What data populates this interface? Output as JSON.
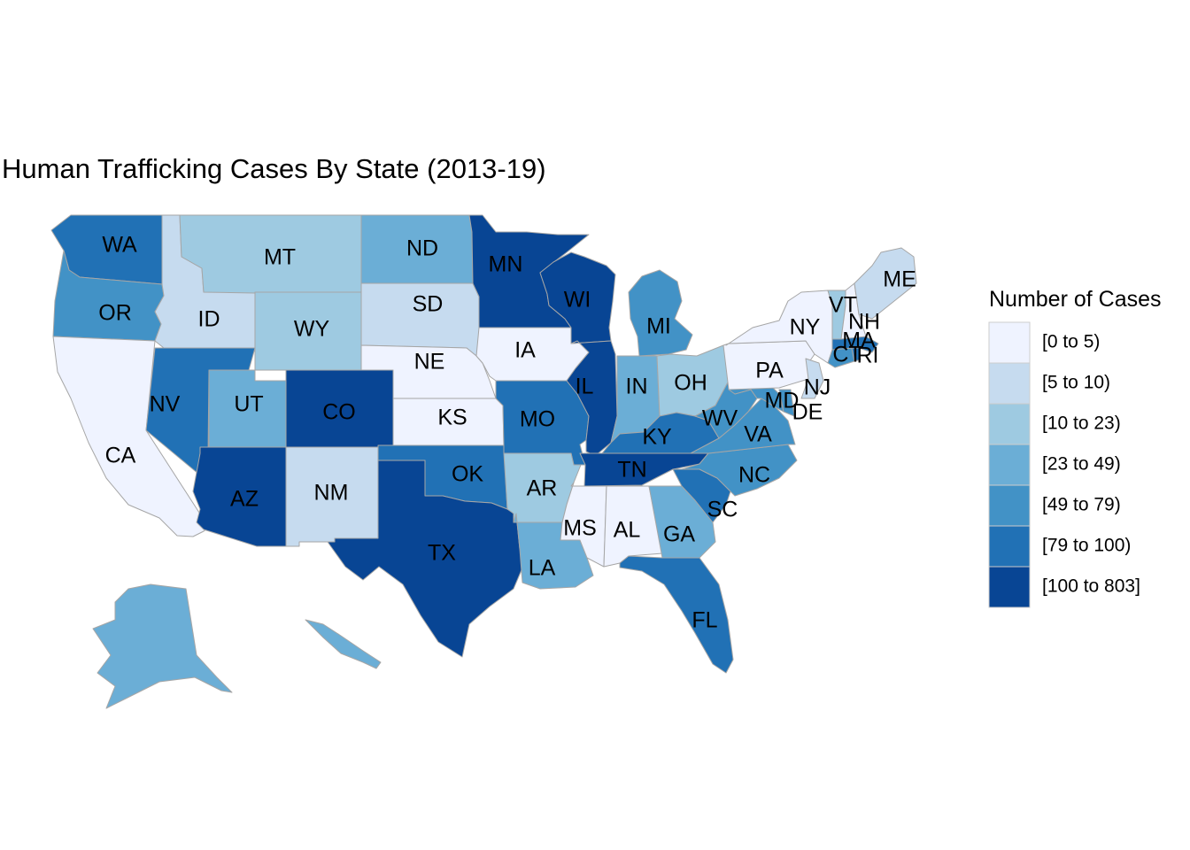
{
  "chart_data": {
    "type": "choropleth",
    "title": "Human Trafficking Cases By State (2013-19)",
    "legend_title": "Number of Cases",
    "legend_position": "right",
    "bins": [
      {
        "label": "[0 to 5)",
        "color": "#eff3ff"
      },
      {
        "label": "[5 to 10)",
        "color": "#c6dbef"
      },
      {
        "label": "[10 to 23)",
        "color": "#9ecae1"
      },
      {
        "label": "[23 to 49)",
        "color": "#6baed6"
      },
      {
        "label": "[49 to 79)",
        "color": "#4292c6"
      },
      {
        "label": "[79 to 100)",
        "color": "#2171b5"
      },
      {
        "label": "[100 to 803]",
        "color": "#084594"
      }
    ],
    "states": [
      {
        "abbr": "WA",
        "bin": 5
      },
      {
        "abbr": "OR",
        "bin": 4
      },
      {
        "abbr": "CA",
        "bin": 0
      },
      {
        "abbr": "ID",
        "bin": 1
      },
      {
        "abbr": "NV",
        "bin": 5
      },
      {
        "abbr": "MT",
        "bin": 2
      },
      {
        "abbr": "WY",
        "bin": 2
      },
      {
        "abbr": "UT",
        "bin": 3
      },
      {
        "abbr": "AZ",
        "bin": 6
      },
      {
        "abbr": "CO",
        "bin": 6
      },
      {
        "abbr": "NM",
        "bin": 1
      },
      {
        "abbr": "ND",
        "bin": 3
      },
      {
        "abbr": "SD",
        "bin": 1
      },
      {
        "abbr": "NE",
        "bin": 0
      },
      {
        "abbr": "KS",
        "bin": 0
      },
      {
        "abbr": "OK",
        "bin": 5
      },
      {
        "abbr": "TX",
        "bin": 6
      },
      {
        "abbr": "MN",
        "bin": 6
      },
      {
        "abbr": "IA",
        "bin": 0
      },
      {
        "abbr": "MO",
        "bin": 5
      },
      {
        "abbr": "AR",
        "bin": 2
      },
      {
        "abbr": "LA",
        "bin": 3
      },
      {
        "abbr": "WI",
        "bin": 6
      },
      {
        "abbr": "IL",
        "bin": 6
      },
      {
        "abbr": "MI",
        "bin": 4
      },
      {
        "abbr": "IN",
        "bin": 3
      },
      {
        "abbr": "OH",
        "bin": 2
      },
      {
        "abbr": "KY",
        "bin": 5
      },
      {
        "abbr": "TN",
        "bin": 6
      },
      {
        "abbr": "MS",
        "bin": 0
      },
      {
        "abbr": "AL",
        "bin": 0
      },
      {
        "abbr": "GA",
        "bin": 3
      },
      {
        "abbr": "FL",
        "bin": 5
      },
      {
        "abbr": "SC",
        "bin": 5
      },
      {
        "abbr": "NC",
        "bin": 4
      },
      {
        "abbr": "VA",
        "bin": 4
      },
      {
        "abbr": "WV",
        "bin": 4
      },
      {
        "abbr": "MD",
        "bin": 4
      },
      {
        "abbr": "DE",
        "bin": 4
      },
      {
        "abbr": "PA",
        "bin": 0
      },
      {
        "abbr": "NJ",
        "bin": 1
      },
      {
        "abbr": "NY",
        "bin": 0
      },
      {
        "abbr": "CT",
        "bin": 4
      },
      {
        "abbr": "RI",
        "bin": 5
      },
      {
        "abbr": "MA",
        "bin": 5
      },
      {
        "abbr": "VT",
        "bin": 2
      },
      {
        "abbr": "NH",
        "bin": 0
      },
      {
        "abbr": "ME",
        "bin": 1
      },
      {
        "abbr": "AK",
        "bin": 3
      },
      {
        "abbr": "HI",
        "bin": 3
      }
    ]
  }
}
